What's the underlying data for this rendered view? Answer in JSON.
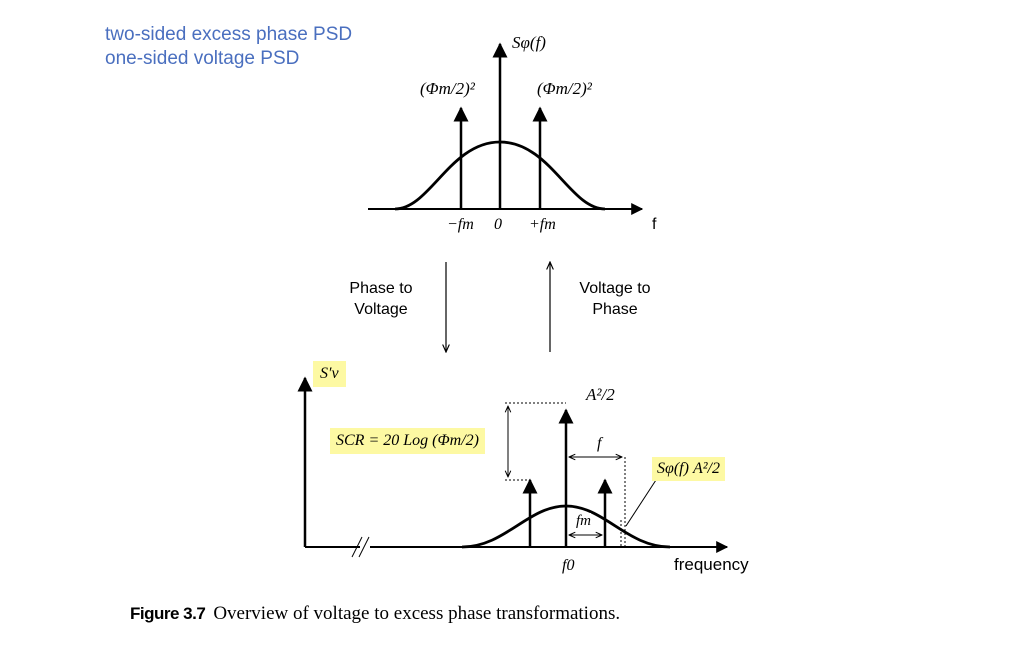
{
  "legend": {
    "line1": "two-sided excess phase PSD",
    "line2": "one-sided voltage PSD"
  },
  "top_plot": {
    "y_label": "Sφ(f)",
    "left_impulse_label": "(Φm/2)²",
    "right_impulse_label": "(Φm/2)²",
    "tick_neg": "−fm",
    "tick_zero": "0",
    "tick_pos": "+fm",
    "x_label": "f"
  },
  "transforms": {
    "phase_to_voltage": [
      "Phase to",
      "Voltage"
    ],
    "voltage_to_phase": [
      "Voltage to",
      "Phase"
    ]
  },
  "bottom_plot": {
    "y_label": "S′v",
    "carrier_label": "A²/2",
    "scr_label": "SCR = 20 Log (Φm/2)",
    "offset_label": "f",
    "fm_label": "fm",
    "noise_label": "Sφ(f) A²/2",
    "f0_label": "f0",
    "x_label": "frequency"
  },
  "caption": {
    "number": "Figure 3.7",
    "text": "Overview of voltage to excess phase transformations."
  }
}
